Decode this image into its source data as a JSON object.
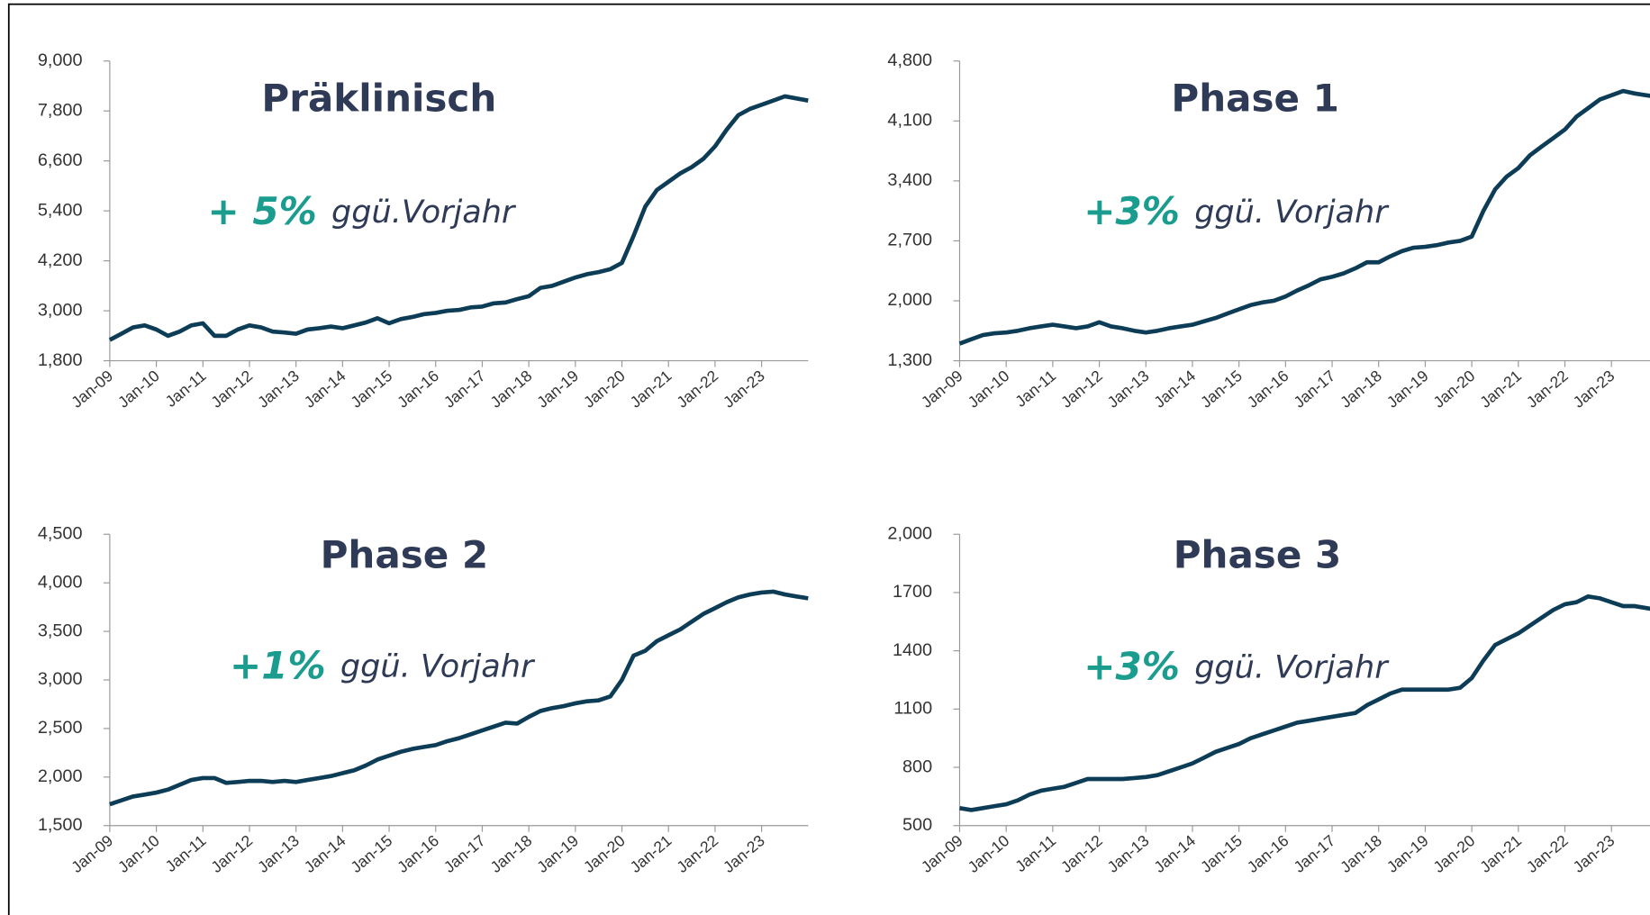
{
  "chart_data": [
    {
      "type": "line",
      "title": "Präklinisch",
      "annotation": {
        "highlight": "+ 5%",
        "text": "ggü.Vorjahr"
      },
      "categories": [
        "Jan-09",
        null,
        null,
        null,
        "Jan-10",
        null,
        null,
        null,
        "Jan-11",
        null,
        null,
        null,
        "Jan-12",
        null,
        null,
        null,
        "Jan-13",
        null,
        null,
        null,
        "Jan-14",
        null,
        null,
        null,
        "Jan-15",
        null,
        null,
        null,
        "Jan-16",
        null,
        null,
        null,
        "Jan-17",
        null,
        null,
        null,
        "Jan-18",
        null,
        null,
        null,
        "Jan-19",
        null,
        null,
        null,
        "Jan-20",
        null,
        null,
        null,
        "Jan-21",
        null,
        null,
        null,
        "Jan-22",
        null,
        null,
        null,
        "Jan-23",
        null,
        null,
        null,
        null
      ],
      "series": [
        {
          "color": "#0d3d56",
          "values": [
            2300,
            2450,
            2600,
            2650,
            2550,
            2400,
            2500,
            2650,
            2700,
            2400,
            2400,
            2550,
            2650,
            2600,
            2500,
            2480,
            2450,
            2550,
            2580,
            2620,
            2580,
            2650,
            2720,
            2820,
            2700,
            2800,
            2850,
            2920,
            2950,
            3000,
            3020,
            3080,
            3100,
            3180,
            3200,
            3280,
            3350,
            3550,
            3600,
            3700,
            3800,
            3880,
            3930,
            4000,
            4150,
            4800,
            5500,
            5900,
            6100,
            6300,
            6450,
            6650,
            6950,
            7350,
            7700,
            7850,
            7950,
            8050,
            8150,
            8100,
            8050
          ]
        }
      ],
      "ylim": [
        1800,
        9000
      ],
      "yticks": [
        {
          "value": 1800,
          "label": "1,800"
        },
        {
          "value": 3000,
          "label": "3,000"
        },
        {
          "value": 4200,
          "label": "4,200"
        },
        {
          "value": 5400,
          "label": "5,400"
        },
        {
          "value": 6600,
          "label": "6,600"
        },
        {
          "value": 7800,
          "label": "7,800"
        },
        {
          "value": 9000,
          "label": "9,000"
        }
      ]
    },
    {
      "type": "line",
      "title": "Phase 1",
      "annotation": {
        "highlight": "+3%",
        "text": "ggü. Vorjahr"
      },
      "categories": [
        "Jan-09",
        null,
        null,
        null,
        "Jan-10",
        null,
        null,
        null,
        "Jan-11",
        null,
        null,
        null,
        "Jan-12",
        null,
        null,
        null,
        "Jan-13",
        null,
        null,
        null,
        "Jan-14",
        null,
        null,
        null,
        "Jan-15",
        null,
        null,
        null,
        "Jan-16",
        null,
        null,
        null,
        "Jan-17",
        null,
        null,
        null,
        "Jan-18",
        null,
        null,
        null,
        "Jan-19",
        null,
        null,
        null,
        "Jan-20",
        null,
        null,
        null,
        "Jan-21",
        null,
        null,
        null,
        "Jan-22",
        null,
        null,
        null,
        "Jan-23",
        null,
        null,
        null,
        null
      ],
      "series": [
        {
          "color": "#0d3d56",
          "values": [
            1500,
            1550,
            1600,
            1620,
            1630,
            1650,
            1680,
            1700,
            1720,
            1700,
            1680,
            1700,
            1750,
            1700,
            1680,
            1650,
            1630,
            1650,
            1680,
            1700,
            1720,
            1760,
            1800,
            1850,
            1900,
            1950,
            1980,
            2000,
            2050,
            2120,
            2180,
            2250,
            2280,
            2320,
            2380,
            2450,
            2450,
            2520,
            2580,
            2620,
            2630,
            2650,
            2680,
            2700,
            2750,
            3050,
            3300,
            3450,
            3550,
            3700,
            3800,
            3900,
            4000,
            4150,
            4250,
            4350,
            4400,
            4450,
            4420,
            4400,
            4380
          ]
        }
      ],
      "ylim": [
        1300,
        4800
      ],
      "yticks": [
        {
          "value": 1300,
          "label": "1,300"
        },
        {
          "value": 2000,
          "label": "2,000"
        },
        {
          "value": 2700,
          "label": "2,700"
        },
        {
          "value": 3400,
          "label": "3,400"
        },
        {
          "value": 4100,
          "label": "4,100"
        },
        {
          "value": 4800,
          "label": "4,800"
        }
      ]
    },
    {
      "type": "line",
      "title": "Phase 2",
      "annotation": {
        "highlight": "+1%",
        "text": "ggü. Vorjahr"
      },
      "categories": [
        "Jan-09",
        null,
        null,
        null,
        "Jan-10",
        null,
        null,
        null,
        "Jan-11",
        null,
        null,
        null,
        "Jan-12",
        null,
        null,
        null,
        "Jan-13",
        null,
        null,
        null,
        "Jan-14",
        null,
        null,
        null,
        "Jan-15",
        null,
        null,
        null,
        "Jan-16",
        null,
        null,
        null,
        "Jan-17",
        null,
        null,
        null,
        "Jan-18",
        null,
        null,
        null,
        "Jan-19",
        null,
        null,
        null,
        "Jan-20",
        null,
        null,
        null,
        "Jan-21",
        null,
        null,
        null,
        "Jan-22",
        null,
        null,
        null,
        "Jan-23",
        null,
        null,
        null,
        null
      ],
      "series": [
        {
          "color": "#0d3d56",
          "values": [
            1720,
            1760,
            1800,
            1820,
            1840,
            1870,
            1920,
            1970,
            1990,
            1990,
            1940,
            1950,
            1960,
            1960,
            1950,
            1960,
            1950,
            1970,
            1990,
            2010,
            2040,
            2070,
            2120,
            2180,
            2220,
            2260,
            2290,
            2310,
            2330,
            2370,
            2400,
            2440,
            2480,
            2520,
            2560,
            2550,
            2620,
            2680,
            2710,
            2730,
            2760,
            2780,
            2790,
            2830,
            3000,
            3250,
            3300,
            3400,
            3460,
            3520,
            3600,
            3680,
            3740,
            3800,
            3850,
            3880,
            3900,
            3910,
            3880,
            3860,
            3840
          ]
        }
      ],
      "ylim": [
        1500,
        4500
      ],
      "yticks": [
        {
          "value": 1500,
          "label": "1,500"
        },
        {
          "value": 2000,
          "label": "2,000"
        },
        {
          "value": 2500,
          "label": "2,500"
        },
        {
          "value": 3000,
          "label": "3,000"
        },
        {
          "value": 3500,
          "label": "3,500"
        },
        {
          "value": 4000,
          "label": "4,000"
        },
        {
          "value": 4500,
          "label": "4,500"
        }
      ]
    },
    {
      "type": "line",
      "title": "Phase 3",
      "annotation": {
        "highlight": "+3%",
        "text": "ggü. Vorjahr"
      },
      "categories": [
        "Jan-09",
        null,
        null,
        null,
        "Jan-10",
        null,
        null,
        null,
        "Jan-11",
        null,
        null,
        null,
        "Jan-12",
        null,
        null,
        null,
        "Jan-13",
        null,
        null,
        null,
        "Jan-14",
        null,
        null,
        null,
        "Jan-15",
        null,
        null,
        null,
        "Jan-16",
        null,
        null,
        null,
        "Jan-17",
        null,
        null,
        null,
        "Jan-18",
        null,
        null,
        null,
        "Jan-19",
        null,
        null,
        null,
        "Jan-20",
        null,
        null,
        null,
        "Jan-21",
        null,
        null,
        null,
        "Jan-22",
        null,
        null,
        null,
        "Jan-23",
        null,
        null,
        null,
        null
      ],
      "series": [
        {
          "color": "#0d3d56",
          "values": [
            590,
            580,
            590,
            600,
            610,
            630,
            660,
            680,
            690,
            700,
            720,
            740,
            740,
            740,
            740,
            745,
            750,
            760,
            780,
            800,
            820,
            850,
            880,
            900,
            920,
            950,
            970,
            990,
            1010,
            1030,
            1040,
            1050,
            1060,
            1070,
            1080,
            1120,
            1150,
            1180,
            1200,
            1200,
            1200,
            1200,
            1200,
            1210,
            1260,
            1350,
            1430,
            1460,
            1490,
            1530,
            1570,
            1610,
            1640,
            1650,
            1680,
            1670,
            1650,
            1630,
            1630,
            1620,
            1610
          ]
        }
      ],
      "ylim": [
        500,
        2000
      ],
      "yticks": [
        500,
        800,
        1100,
        1400,
        1700,
        {
          "value": 2000,
          "label": "2,000"
        }
      ]
    }
  ]
}
